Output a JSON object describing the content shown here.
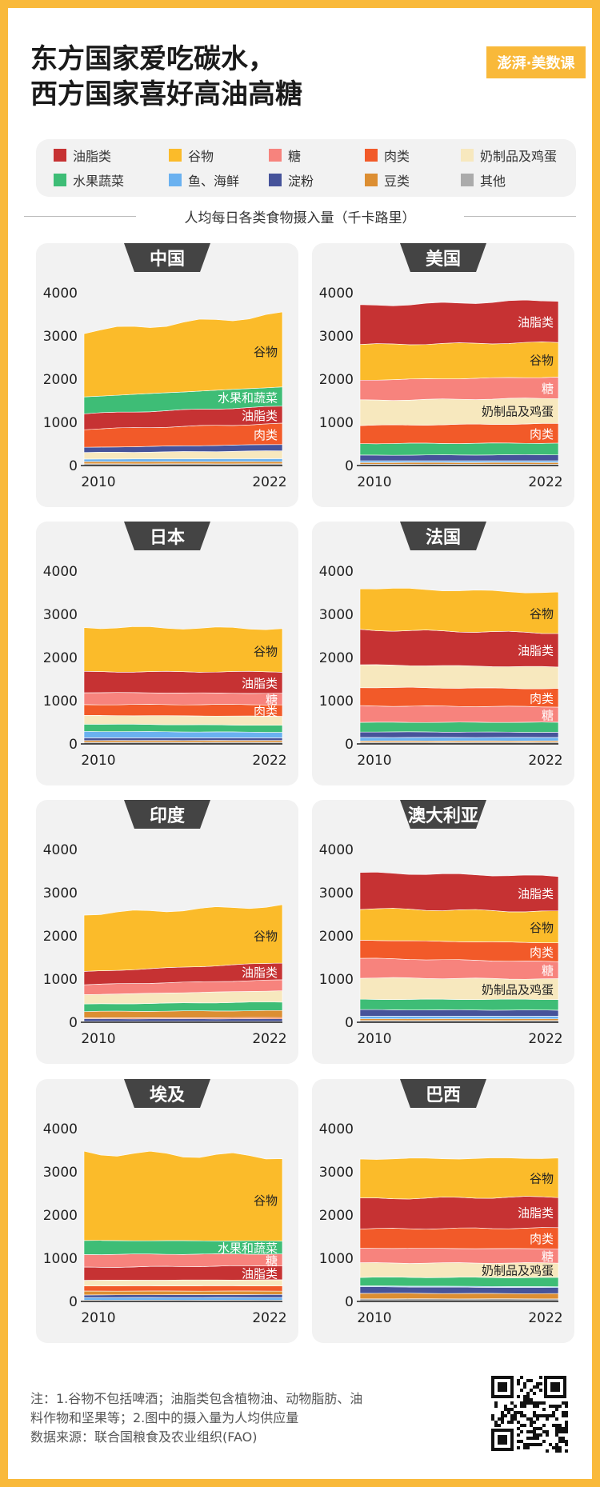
{
  "title": {
    "line1": "东方国家爱吃碳水，",
    "line2": "西方国家喜好高油高糖"
  },
  "logo": "澎湃·美数课",
  "legend": [
    {
      "label": "油脂类",
      "color": "#C63233"
    },
    {
      "label": "谷物",
      "color": "#FBBB2A"
    },
    {
      "label": "糖",
      "color": "#F7837D"
    },
    {
      "label": "肉类",
      "color": "#F25A29"
    },
    {
      "label": "奶制品及鸡蛋",
      "color": "#F7E8BE"
    },
    {
      "label": "水果蔬菜",
      "color": "#3EBD76"
    },
    {
      "label": "鱼、海鲜",
      "color": "#6AB1F0"
    },
    {
      "label": "淀粉",
      "color": "#46539A"
    },
    {
      "label": "豆类",
      "color": "#DC8E32"
    },
    {
      "label": "其他",
      "color": "#ABABAB"
    }
  ],
  "subtitle": "人均每日各类食物摄入量（千卡路里）",
  "notes": {
    "line1": "注：1.谷物不包括啤酒；油脂类包含植物油、动物脂肪、油",
    "line2": "料作物和坚果等；2.图中的摄入量为人均供应量",
    "line3": "数据来源：联合国粮食及农业组织(FAO)"
  },
  "chart_data": [
    {
      "type": "area",
      "title": "中国",
      "x": [
        2010,
        2022
      ],
      "ylim": [
        0,
        4000
      ],
      "yticks": [
        0,
        1000,
        2000,
        3000,
        4000
      ],
      "xticks": [
        "2010",
        "2022"
      ],
      "series": [
        {
          "name": "其他",
          "values": [
            40,
            40
          ]
        },
        {
          "name": "豆类",
          "values": [
            50,
            50
          ]
        },
        {
          "name": "鱼、海鲜",
          "values": [
            60,
            70
          ]
        },
        {
          "name": "奶制品及鸡蛋",
          "values": [
            150,
            180
          ]
        },
        {
          "name": "淀粉",
          "values": [
            120,
            150
          ]
        },
        {
          "name": "肉类",
          "values": [
            420,
            480
          ]
        },
        {
          "name": "油脂类",
          "values": [
            360,
            400
          ]
        },
        {
          "name": "水果蔬菜",
          "values": [
            390,
            450
          ]
        },
        {
          "name": "谷物",
          "values": [
            1510,
            1680
          ]
        }
      ],
      "labels": [
        {
          "text": "谷物",
          "series": "谷物"
        },
        {
          "text": "水果和蔬菜",
          "series": "水果蔬菜"
        },
        {
          "text": "油脂类",
          "series": "油脂类"
        },
        {
          "text": "肉类",
          "series": "肉类"
        }
      ]
    },
    {
      "type": "area",
      "title": "美国",
      "x": [
        2010,
        2022
      ],
      "ylim": [
        0,
        4000
      ],
      "yticks": [
        0,
        1000,
        2000,
        3000,
        4000
      ],
      "xticks": [
        "2010",
        "2022"
      ],
      "series": [
        {
          "name": "其他",
          "values": [
            30,
            30
          ]
        },
        {
          "name": "豆类",
          "values": [
            40,
            40
          ]
        },
        {
          "name": "鱼、海鲜",
          "values": [
            40,
            40
          ]
        },
        {
          "name": "淀粉",
          "values": [
            130,
            140
          ]
        },
        {
          "name": "水果蔬菜",
          "values": [
            270,
            270
          ]
        },
        {
          "name": "肉类",
          "values": [
            420,
            450
          ]
        },
        {
          "name": "奶制品及鸡蛋",
          "values": [
            580,
            590
          ]
        },
        {
          "name": "糖",
          "values": [
            470,
            490
          ]
        },
        {
          "name": "谷物",
          "values": [
            820,
            800
          ]
        },
        {
          "name": "油脂类",
          "values": [
            900,
            980
          ]
        }
      ],
      "labels": [
        {
          "text": "油脂类",
          "series": "油脂类"
        },
        {
          "text": "谷物",
          "series": "谷物"
        },
        {
          "text": "糖",
          "series": "糖"
        },
        {
          "text": "肉类",
          "series": "肉类"
        },
        {
          "text": "奶制品及鸡蛋",
          "series": "奶制品及鸡蛋"
        }
      ]
    },
    {
      "type": "area",
      "title": "日本",
      "x": [
        2010,
        2022
      ],
      "ylim": [
        0,
        4000
      ],
      "yticks": [
        0,
        1000,
        2000,
        3000,
        4000
      ],
      "xticks": [
        "2010",
        "2022"
      ],
      "series": [
        {
          "name": "其他",
          "values": [
            40,
            40
          ]
        },
        {
          "name": "豆类",
          "values": [
            40,
            40
          ]
        },
        {
          "name": "淀粉",
          "values": [
            60,
            60
          ]
        },
        {
          "name": "鱼、海鲜",
          "values": [
            150,
            130
          ]
        },
        {
          "name": "水果蔬菜",
          "values": [
            170,
            160
          ]
        },
        {
          "name": "奶制品及鸡蛋",
          "values": [
            200,
            210
          ]
        },
        {
          "name": "肉类",
          "values": [
            250,
            270
          ]
        },
        {
          "name": "糖",
          "values": [
            280,
            260
          ]
        },
        {
          "name": "油脂类",
          "values": [
            480,
            500
          ]
        },
        {
          "name": "谷物",
          "values": [
            1030,
            1000
          ]
        }
      ],
      "labels": [
        {
          "text": "谷物",
          "series": "谷物"
        },
        {
          "text": "油脂类",
          "series": "油脂类"
        },
        {
          "text": "糖",
          "series": "糖"
        },
        {
          "text": "肉类",
          "series": "肉类"
        }
      ]
    },
    {
      "type": "area",
      "title": "法国",
      "x": [
        2010,
        2022
      ],
      "ylim": [
        0,
        4000
      ],
      "yticks": [
        0,
        1000,
        2000,
        3000,
        4000
      ],
      "xticks": [
        "2010",
        "2022"
      ],
      "series": [
        {
          "name": "其他",
          "values": [
            40,
            40
          ]
        },
        {
          "name": "豆类",
          "values": [
            30,
            30
          ]
        },
        {
          "name": "鱼、海鲜",
          "values": [
            80,
            80
          ]
        },
        {
          "name": "淀粉",
          "values": [
            130,
            120
          ]
        },
        {
          "name": "水果蔬菜",
          "values": [
            220,
            230
          ]
        },
        {
          "name": "糖",
          "values": [
            380,
            360
          ]
        },
        {
          "name": "肉类",
          "values": [
            430,
            420
          ]
        },
        {
          "name": "奶制品及鸡蛋",
          "values": [
            520,
            500
          ]
        },
        {
          "name": "油脂类",
          "values": [
            810,
            790
          ]
        },
        {
          "name": "谷物",
          "values": [
            970,
            930
          ]
        }
      ],
      "labels": [
        {
          "text": "谷物",
          "series": "谷物"
        },
        {
          "text": "油脂类",
          "series": "油脂类"
        },
        {
          "text": "肉类",
          "series": "肉类"
        },
        {
          "text": "糖",
          "series": "糖"
        }
      ]
    },
    {
      "type": "area",
      "title": "印度",
      "x": [
        2010,
        2022
      ],
      "ylim": [
        0,
        4000
      ],
      "yticks": [
        0,
        1000,
        2000,
        3000,
        4000
      ],
      "xticks": [
        "2010",
        "2022"
      ],
      "series": [
        {
          "name": "其他",
          "values": [
            20,
            20
          ]
        },
        {
          "name": "淀粉",
          "values": [
            60,
            60
          ]
        },
        {
          "name": "肉类",
          "values": [
            20,
            30
          ]
        },
        {
          "name": "豆类",
          "values": [
            150,
            160
          ]
        },
        {
          "name": "水果蔬菜",
          "values": [
            170,
            200
          ]
        },
        {
          "name": "奶制品及鸡蛋",
          "values": [
            220,
            260
          ]
        },
        {
          "name": "糖",
          "values": [
            230,
            250
          ]
        },
        {
          "name": "油脂类",
          "values": [
            300,
            400
          ]
        },
        {
          "name": "谷物",
          "values": [
            1340,
            1320
          ]
        }
      ],
      "labels": [
        {
          "text": "谷物",
          "series": "谷物"
        },
        {
          "text": "油脂类",
          "series": "油脂类"
        }
      ]
    },
    {
      "type": "area",
      "title": "澳大利亚",
      "x": [
        2010,
        2022
      ],
      "ylim": [
        0,
        4000
      ],
      "yticks": [
        0,
        1000,
        2000,
        3000,
        4000
      ],
      "xticks": [
        "2010",
        "2022"
      ],
      "series": [
        {
          "name": "其他",
          "values": [
            40,
            40
          ]
        },
        {
          "name": "豆类",
          "values": [
            40,
            40
          ]
        },
        {
          "name": "鱼、海鲜",
          "values": [
            60,
            60
          ]
        },
        {
          "name": "淀粉",
          "values": [
            150,
            140
          ]
        },
        {
          "name": "水果蔬菜",
          "values": [
            240,
            250
          ]
        },
        {
          "name": "奶制品及鸡蛋",
          "values": [
            500,
            470
          ]
        },
        {
          "name": "糖",
          "values": [
            450,
            400
          ]
        },
        {
          "name": "肉类",
          "values": [
            420,
            440
          ]
        },
        {
          "name": "谷物",
          "values": [
            730,
            720
          ]
        },
        {
          "name": "油脂类",
          "values": [
            830,
            820
          ]
        }
      ],
      "labels": [
        {
          "text": "油脂类",
          "series": "油脂类"
        },
        {
          "text": "谷物",
          "series": "谷物"
        },
        {
          "text": "肉类",
          "series": "肉类"
        },
        {
          "text": "糖",
          "series": "糖"
        },
        {
          "text": "奶制品及鸡蛋",
          "series": "奶制品及鸡蛋"
        }
      ]
    },
    {
      "type": "area",
      "title": "埃及",
      "x": [
        2010,
        2022
      ],
      "ylim": [
        0,
        4000
      ],
      "yticks": [
        0,
        1000,
        2000,
        3000,
        4000
      ],
      "xticks": [
        "2010",
        "2022"
      ],
      "series": [
        {
          "name": "其他",
          "values": [
            30,
            30
          ]
        },
        {
          "name": "鱼、海鲜",
          "values": [
            60,
            60
          ]
        },
        {
          "name": "淀粉",
          "values": [
            60,
            70
          ]
        },
        {
          "name": "豆类",
          "values": [
            90,
            80
          ]
        },
        {
          "name": "肉类",
          "values": [
            120,
            120
          ]
        },
        {
          "name": "奶制品及鸡蛋",
          "values": [
            130,
            140
          ]
        },
        {
          "name": "油脂类",
          "values": [
            300,
            330
          ]
        },
        {
          "name": "糖",
          "values": [
            300,
            270
          ]
        },
        {
          "name": "水果蔬菜",
          "values": [
            320,
            300
          ]
        },
        {
          "name": "谷物",
          "values": [
            2030,
            1950
          ]
        }
      ],
      "labels": [
        {
          "text": "谷物",
          "series": "谷物"
        },
        {
          "text": "水果和蔬菜",
          "series": "水果蔬菜"
        },
        {
          "text": "糖",
          "series": "糖"
        },
        {
          "text": "油脂类",
          "series": "油脂类"
        }
      ]
    },
    {
      "type": "area",
      "title": "巴西",
      "x": [
        2010,
        2022
      ],
      "ylim": [
        0,
        4000
      ],
      "yticks": [
        0,
        1000,
        2000,
        3000,
        4000
      ],
      "xticks": [
        "2010",
        "2022"
      ],
      "series": [
        {
          "name": "其他",
          "values": [
            60,
            60
          ]
        },
        {
          "name": "豆类",
          "values": [
            130,
            120
          ]
        },
        {
          "name": "淀粉",
          "values": [
            150,
            140
          ]
        },
        {
          "name": "鱼、海鲜",
          "values": [
            20,
            20
          ]
        },
        {
          "name": "水果蔬菜",
          "values": [
            200,
            210
          ]
        },
        {
          "name": "奶制品及鸡蛋",
          "values": [
            330,
            340
          ]
        },
        {
          "name": "糖",
          "values": [
            340,
            330
          ]
        },
        {
          "name": "肉类",
          "values": [
            450,
            480
          ]
        },
        {
          "name": "油脂类",
          "values": [
            700,
            720
          ]
        },
        {
          "name": "谷物",
          "values": [
            920,
            900
          ]
        }
      ],
      "labels": [
        {
          "text": "谷物",
          "series": "谷物"
        },
        {
          "text": "油脂类",
          "series": "油脂类"
        },
        {
          "text": "肉类",
          "series": "肉类"
        },
        {
          "text": "糖",
          "series": "糖"
        },
        {
          "text": "奶制品及鸡蛋",
          "series": "奶制品及鸡蛋"
        }
      ]
    }
  ]
}
